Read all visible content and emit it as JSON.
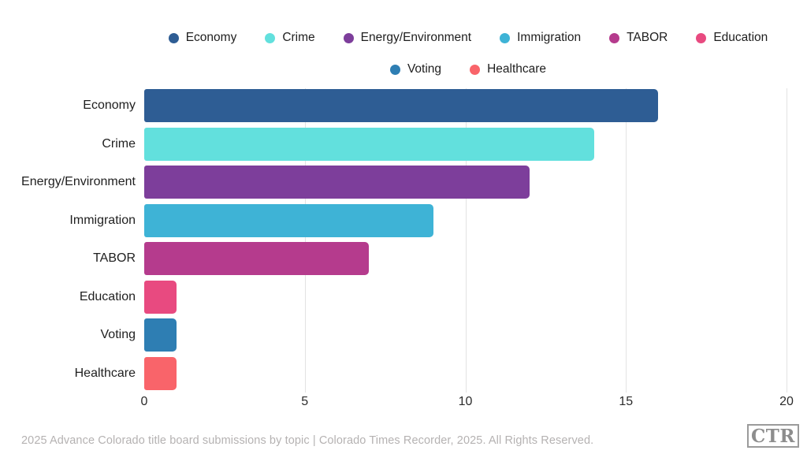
{
  "chart_data": {
    "type": "bar",
    "orientation": "horizontal",
    "categories": [
      "Economy",
      "Crime",
      "Energy/Environment",
      "Immigration",
      "TABOR",
      "Education",
      "Voting",
      "Healthcare"
    ],
    "values": [
      16,
      14,
      12,
      9,
      7,
      1,
      1,
      1
    ],
    "colors": [
      "#2e5d94",
      "#62e0dd",
      "#7d3e9b",
      "#3eb3d6",
      "#b53b8d",
      "#e84a80",
      "#2e7eb3",
      "#f9646a"
    ],
    "xlim": [
      0,
      20
    ],
    "x_ticks": [
      0,
      5,
      10,
      15,
      20
    ],
    "grid": true,
    "legend_position": "top",
    "legend_rows": [
      [
        "Economy",
        "Crime",
        "Energy/Environment",
        "Immigration",
        "TABOR",
        "Education"
      ],
      [
        "Voting",
        "Healthcare"
      ]
    ],
    "title": "",
    "xlabel": "",
    "ylabel": ""
  },
  "footer": {
    "caption": "2025 Advance Colorado title board submissions by topic | Colorado Times Recorder, 2025. All Rights Reserved.",
    "logo_text": "CTR"
  }
}
